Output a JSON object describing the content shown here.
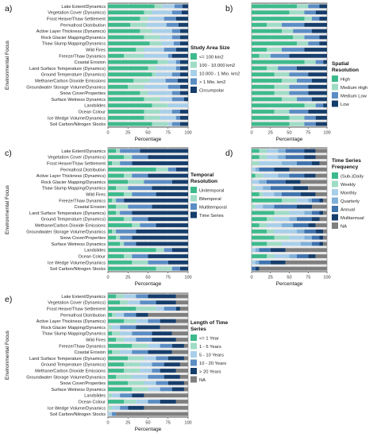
{
  "figure": {
    "ylabel": "Environmental Focus",
    "categories": [
      "Lake Extent/Dynamics",
      "Vegetation Cover (Dynamics)",
      "Frost Heave/Thaw Settlement",
      "Permafrost Distribution",
      "Active Layer Thickness (Dynamics)",
      "Rock Glacier Mapping/Dynamics",
      "Thaw Slump Mapping/Dynamics",
      "Wild Fires",
      "Freeze/Thaw Dynamics",
      "Coastal Erosion",
      "Land Surface Temperature (Dynamics)",
      "Ground Temperature (Dynamics)",
      "Methane/Carbon Dioxide Emissions",
      "Groundwater Storage Volume/Dynamics",
      "Snow Cover/Properties",
      "Surface Wetness Dynamics",
      "Landslides",
      "Ocean Colour",
      "Ice Wedge Volume/Dynamics",
      "Soil Carbon/Nitrogen Stocks"
    ],
    "xticks": [
      "0",
      "25",
      "50",
      "75",
      "100"
    ],
    "xlabel": "Percentage"
  },
  "chart_data": [
    {
      "panel": "a)",
      "type": "bar",
      "stacked": true,
      "orientation": "horizontal",
      "xlabel": "Percentage",
      "ylabel": "Environmental Focus",
      "xlim": [
        0,
        100
      ],
      "legend_title": "Study Area Size",
      "series": [
        {
          "name": "<= 100 km2",
          "color": "#3DBA8C",
          "values": [
            58,
            45,
            40,
            28,
            40,
            45,
            52,
            35,
            20,
            62,
            50,
            55,
            32,
            25,
            40,
            45,
            55,
            45,
            45,
            55
          ]
        },
        {
          "name": "100 - 10.000 km2",
          "color": "#9FDCC6",
          "values": [
            10,
            10,
            10,
            20,
            15,
            20,
            15,
            10,
            25,
            13,
            10,
            5,
            20,
            20,
            10,
            20,
            20,
            20,
            20,
            20
          ]
        },
        {
          "name": "10.000 - 1 Mio. km2",
          "color": "#A8CFEA",
          "values": [
            15,
            25,
            20,
            25,
            25,
            15,
            15,
            25,
            30,
            10,
            25,
            20,
            20,
            30,
            30,
            15,
            25,
            15,
            20,
            5
          ]
        },
        {
          "name": "> 1 Mio. km2",
          "color": "#5B8DC4",
          "values": [
            10,
            12,
            15,
            15,
            10,
            10,
            8,
            15,
            5,
            5,
            5,
            10,
            15,
            15,
            10,
            15,
            0,
            10,
            5,
            10
          ]
        },
        {
          "name": "Circumpolar",
          "color": "#163E6C",
          "values": [
            7,
            8,
            15,
            12,
            10,
            10,
            10,
            15,
            20,
            10,
            10,
            10,
            13,
            10,
            10,
            5,
            0,
            10,
            10,
            10
          ]
        }
      ]
    },
    {
      "panel": "b)",
      "type": "bar",
      "stacked": true,
      "orientation": "horizontal",
      "xlabel": "Percentage",
      "xlim": [
        0,
        100
      ],
      "legend_title": "Spatial Resolution",
      "series": [
        {
          "name": "High",
          "color": "#3DBA8C",
          "values": [
            60,
            50,
            70,
            20,
            40,
            55,
            60,
            20,
            10,
            70,
            20,
            30,
            40,
            30,
            30,
            40,
            70,
            30,
            50,
            50
          ]
        },
        {
          "name": "Medium High",
          "color": "#9FDCC6",
          "values": [
            15,
            20,
            10,
            20,
            15,
            15,
            15,
            20,
            15,
            15,
            15,
            20,
            20,
            20,
            20,
            20,
            15,
            20,
            20,
            20
          ]
        },
        {
          "name": "Medium Low",
          "color": "#5B8DC4",
          "values": [
            15,
            15,
            10,
            30,
            25,
            20,
            15,
            30,
            25,
            10,
            25,
            25,
            20,
            25,
            25,
            20,
            10,
            25,
            15,
            15
          ]
        },
        {
          "name": "Low",
          "color": "#163E6C",
          "values": [
            10,
            15,
            10,
            30,
            20,
            10,
            10,
            30,
            50,
            5,
            40,
            25,
            20,
            25,
            25,
            20,
            5,
            25,
            15,
            15
          ]
        }
      ]
    },
    {
      "panel": "c)",
      "type": "bar",
      "stacked": true,
      "orientation": "horizontal",
      "xlabel": "Percentage",
      "ylabel": "Environmental Focus",
      "xlim": [
        0,
        100
      ],
      "legend_title": "Temporal Resolution",
      "series": [
        {
          "name": "Unitemporal",
          "color": "#3DBA8C",
          "values": [
            10,
            20,
            5,
            60,
            20,
            25,
            10,
            20,
            5,
            10,
            10,
            20,
            30,
            5,
            10,
            15,
            60,
            20,
            30,
            60
          ]
        },
        {
          "name": "Bitemporal",
          "color": "#9FDCC6",
          "values": [
            5,
            10,
            10,
            15,
            10,
            20,
            15,
            10,
            5,
            15,
            5,
            10,
            10,
            5,
            5,
            5,
            10,
            10,
            20,
            20
          ]
        },
        {
          "name": "Multitemporal",
          "color": "#5B8DC4",
          "values": [
            25,
            20,
            15,
            10,
            20,
            35,
            30,
            30,
            10,
            30,
            15,
            20,
            20,
            25,
            15,
            15,
            10,
            20,
            25,
            10
          ]
        },
        {
          "name": "Time Series",
          "color": "#163E6C",
          "values": [
            60,
            50,
            70,
            15,
            50,
            20,
            45,
            40,
            80,
            45,
            70,
            50,
            40,
            65,
            70,
            65,
            20,
            50,
            25,
            10
          ]
        }
      ]
    },
    {
      "panel": "d)",
      "type": "bar",
      "stacked": true,
      "orientation": "horizontal",
      "xlabel": "Percentage",
      "xlim": [
        0,
        100
      ],
      "legend_title": "Time Series Frequency",
      "series": [
        {
          "name": "(Sub-)Daily",
          "color": "#3DBA8C",
          "values": [
            10,
            10,
            0,
            0,
            5,
            0,
            0,
            10,
            40,
            0,
            30,
            20,
            10,
            20,
            30,
            20,
            0,
            20,
            0,
            0
          ]
        },
        {
          "name": "Weekly",
          "color": "#9FDCC6",
          "values": [
            10,
            10,
            10,
            0,
            10,
            0,
            5,
            5,
            20,
            5,
            20,
            10,
            10,
            10,
            20,
            20,
            0,
            10,
            0,
            0
          ]
        },
        {
          "name": "Monthly",
          "color": "#A8CFEA",
          "values": [
            15,
            15,
            30,
            5,
            20,
            10,
            10,
            15,
            15,
            10,
            20,
            20,
            20,
            30,
            20,
            25,
            5,
            20,
            5,
            0
          ]
        },
        {
          "name": "Quarterly",
          "color": "#7FB0D8",
          "values": [
            10,
            10,
            20,
            5,
            15,
            10,
            10,
            10,
            5,
            15,
            10,
            10,
            15,
            10,
            10,
            15,
            5,
            10,
            5,
            0
          ]
        },
        {
          "name": "Annual",
          "color": "#3F73AE",
          "values": [
            25,
            25,
            20,
            20,
            20,
            25,
            30,
            25,
            10,
            30,
            10,
            20,
            20,
            15,
            10,
            10,
            15,
            15,
            15,
            5
          ]
        },
        {
          "name": "Multiannual",
          "color": "#163E6C",
          "values": [
            15,
            15,
            10,
            20,
            15,
            20,
            20,
            20,
            5,
            20,
            5,
            10,
            10,
            10,
            5,
            5,
            20,
            10,
            20,
            5
          ]
        },
        {
          "name": "NA",
          "color": "#7F7F7F",
          "values": [
            15,
            15,
            10,
            50,
            15,
            35,
            25,
            15,
            5,
            20,
            5,
            10,
            15,
            5,
            5,
            5,
            55,
            15,
            55,
            90
          ]
        }
      ]
    },
    {
      "panel": "e)",
      "type": "bar",
      "stacked": true,
      "orientation": "horizontal",
      "xlabel": "Percentage",
      "ylabel": "Environmental Focus",
      "xlim": [
        0,
        100
      ],
      "legend_title": "Length of Time Series",
      "series": [
        {
          "name": "<= 1 Year",
          "color": "#3DBA8C",
          "values": [
            10,
            15,
            35,
            5,
            20,
            0,
            5,
            10,
            30,
            5,
            25,
            20,
            20,
            10,
            25,
            30,
            0,
            20,
            0,
            0
          ]
        },
        {
          "name": "1 - 5 Years",
          "color": "#9FDCC6",
          "values": [
            10,
            10,
            25,
            5,
            15,
            5,
            10,
            10,
            20,
            10,
            20,
            20,
            20,
            20,
            20,
            20,
            5,
            15,
            5,
            0
          ]
        },
        {
          "name": "5 - 10 Years",
          "color": "#A8CFEA",
          "values": [
            15,
            15,
            10,
            10,
            15,
            10,
            15,
            15,
            15,
            15,
            15,
            15,
            15,
            20,
            15,
            15,
            10,
            15,
            10,
            5
          ]
        },
        {
          "name": "10 - 20 Years",
          "color": "#5B8DC4",
          "values": [
            15,
            20,
            15,
            15,
            15,
            20,
            25,
            20,
            15,
            20,
            15,
            15,
            10,
            20,
            15,
            15,
            15,
            15,
            10,
            5
          ]
        },
        {
          "name": "> 20 Years",
          "color": "#163E6C",
          "values": [
            35,
            25,
            5,
            15,
            20,
            30,
            25,
            30,
            15,
            30,
            20,
            20,
            20,
            20,
            20,
            15,
            15,
            20,
            20,
            0
          ]
        },
        {
          "name": "NA",
          "color": "#7F7F7F",
          "values": [
            15,
            15,
            10,
            50,
            15,
            35,
            20,
            15,
            5,
            20,
            5,
            10,
            15,
            10,
            5,
            5,
            55,
            15,
            55,
            90
          ]
        }
      ]
    }
  ]
}
